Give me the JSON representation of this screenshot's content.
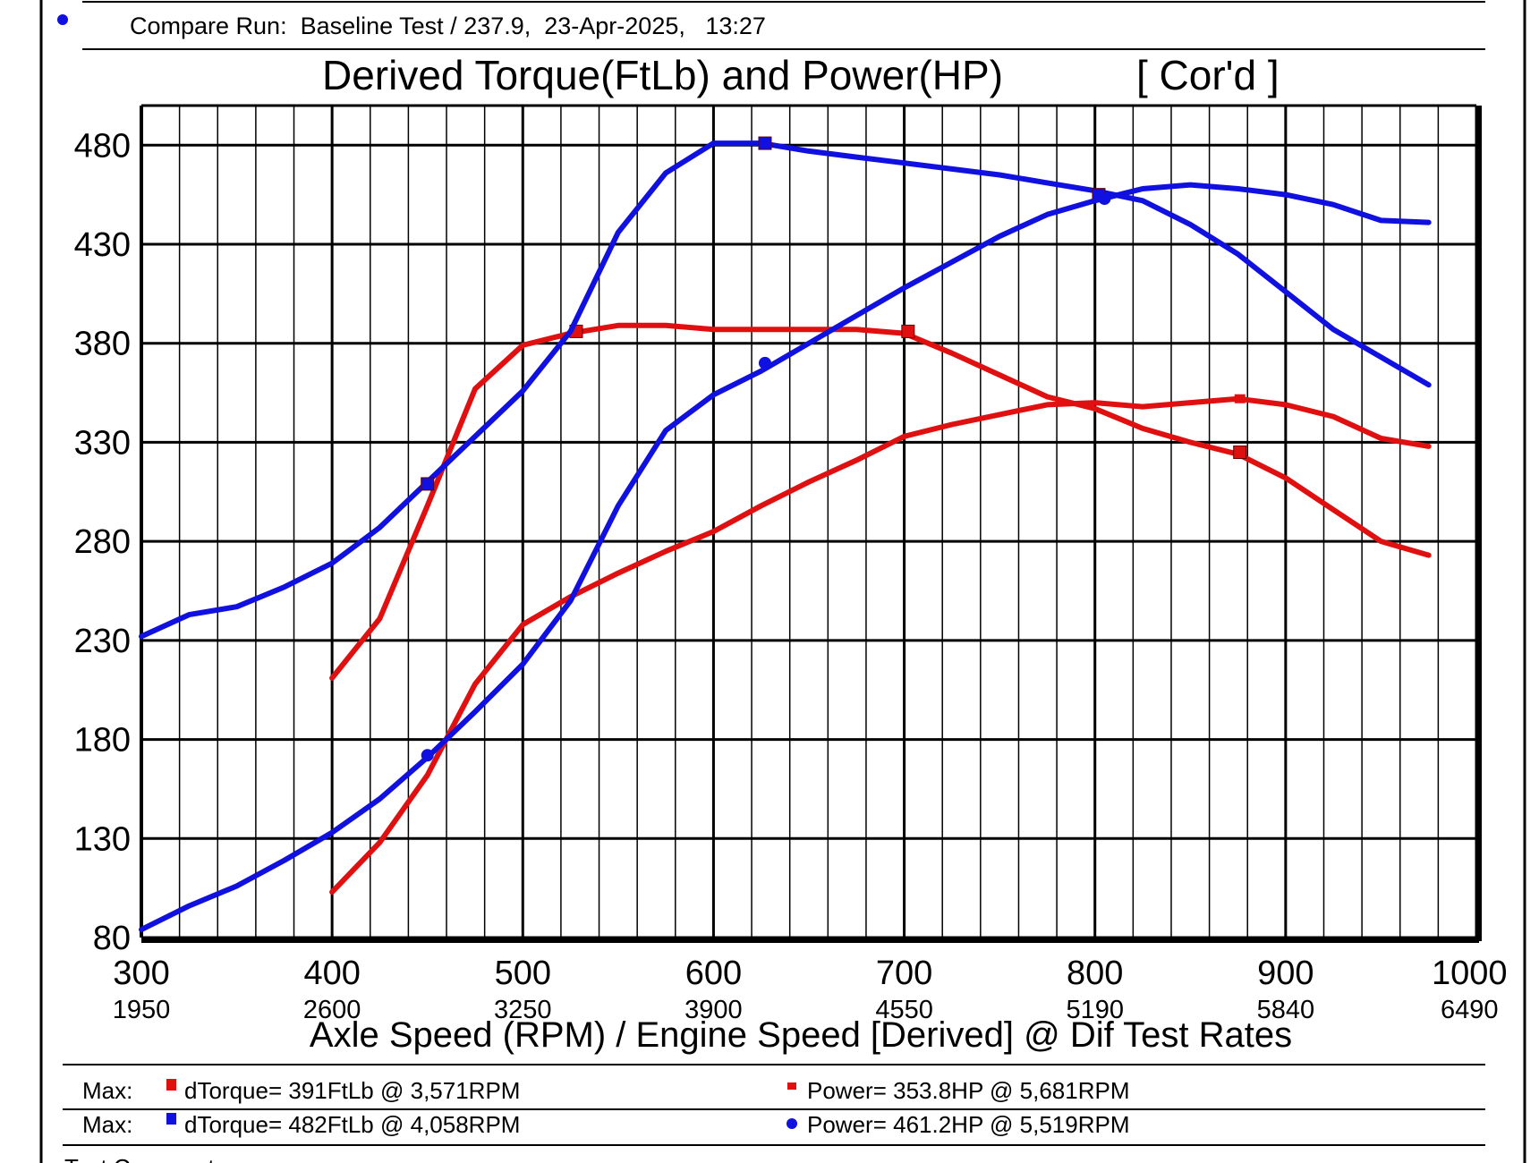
{
  "header": {
    "compare_run": "Compare Run:  Baseline Test / 237.9,  23-Apr-2025,   13:27"
  },
  "chart_data": {
    "type": "line",
    "title": "Derived Torque(FtLb) and Power(HP)",
    "title_suffix": "[ Cor'd ]",
    "xlabel": "Axle Speed (RPM) / Engine Speed [Derived] @ Dif Test Rates",
    "ylabel": "",
    "xlim": [
      300,
      1000
    ],
    "ylim": [
      80,
      500
    ],
    "x_ticks": [
      300,
      400,
      500,
      600,
      700,
      800,
      900,
      1000
    ],
    "x_tick_labels": [
      "300",
      "400",
      "500",
      "600",
      "700",
      "800",
      "900",
      "1000"
    ],
    "x_secondary_tick_labels": [
      "1950",
      "2600",
      "3250",
      "3900",
      "4550",
      "5190",
      "5840",
      "6490"
    ],
    "y_ticks": [
      80,
      130,
      180,
      230,
      280,
      330,
      380,
      430,
      480
    ],
    "y_tick_labels": [
      "80",
      "130",
      "180",
      "230",
      "280",
      "330",
      "380",
      "430",
      "480"
    ],
    "grid": true,
    "series": [
      {
        "name": "dTorque (Compare Run)",
        "color": "#e01010",
        "marker": "square",
        "points": [
          [
            400,
            211
          ],
          [
            425,
            241
          ],
          [
            450,
            298
          ],
          [
            475,
            357
          ],
          [
            500,
            379
          ],
          [
            525,
            385
          ],
          [
            550,
            389
          ],
          [
            575,
            389
          ],
          [
            600,
            387
          ],
          [
            625,
            387
          ],
          [
            650,
            387
          ],
          [
            675,
            387
          ],
          [
            700,
            385
          ],
          [
            725,
            375
          ],
          [
            750,
            364
          ],
          [
            775,
            353
          ],
          [
            800,
            347
          ],
          [
            825,
            337
          ],
          [
            850,
            330
          ],
          [
            875,
            324
          ],
          [
            900,
            312
          ],
          [
            925,
            296
          ],
          [
            950,
            280
          ],
          [
            975,
            273
          ]
        ],
        "markers": [
          [
            528,
            386
          ],
          [
            702,
            386
          ],
          [
            876,
            325
          ]
        ]
      },
      {
        "name": "Power (Compare Run)",
        "color": "#e01010",
        "marker": "star",
        "points": [
          [
            400,
            103
          ],
          [
            425,
            128
          ],
          [
            450,
            162
          ],
          [
            475,
            208
          ],
          [
            500,
            238
          ],
          [
            525,
            252
          ],
          [
            550,
            264
          ],
          [
            575,
            275
          ],
          [
            600,
            285
          ],
          [
            625,
            298
          ],
          [
            650,
            310
          ],
          [
            675,
            321
          ],
          [
            700,
            333
          ],
          [
            725,
            339
          ],
          [
            750,
            344
          ],
          [
            775,
            349
          ],
          [
            800,
            350
          ],
          [
            825,
            348
          ],
          [
            850,
            350
          ],
          [
            875,
            352
          ],
          [
            900,
            349
          ],
          [
            925,
            343
          ],
          [
            950,
            332
          ],
          [
            975,
            328
          ]
        ],
        "markers": [
          [
            876,
            352
          ]
        ]
      },
      {
        "name": "dTorque (Baseline)",
        "color": "#1010e0",
        "marker": "square",
        "points": [
          [
            300,
            232
          ],
          [
            325,
            243
          ],
          [
            350,
            247
          ],
          [
            375,
            257
          ],
          [
            400,
            269
          ],
          [
            425,
            287
          ],
          [
            450,
            310
          ],
          [
            475,
            333
          ],
          [
            500,
            356
          ],
          [
            525,
            386
          ],
          [
            550,
            436
          ],
          [
            575,
            466
          ],
          [
            600,
            481
          ],
          [
            625,
            481
          ],
          [
            650,
            477
          ],
          [
            675,
            474
          ],
          [
            700,
            471
          ],
          [
            725,
            468
          ],
          [
            750,
            465
          ],
          [
            775,
            461
          ],
          [
            800,
            457
          ],
          [
            825,
            452
          ],
          [
            850,
            440
          ],
          [
            875,
            425
          ],
          [
            900,
            406
          ],
          [
            925,
            387
          ],
          [
            950,
            373
          ],
          [
            975,
            359
          ]
        ],
        "markers": [
          [
            450,
            309
          ],
          [
            627,
            481
          ],
          [
            802,
            455
          ]
        ]
      },
      {
        "name": "Power (Baseline)",
        "color": "#1010e0",
        "marker": "circle",
        "points": [
          [
            300,
            84
          ],
          [
            325,
            96
          ],
          [
            350,
            106
          ],
          [
            375,
            119
          ],
          [
            400,
            133
          ],
          [
            425,
            150
          ],
          [
            450,
            171
          ],
          [
            475,
            194
          ],
          [
            500,
            218
          ],
          [
            525,
            250
          ],
          [
            550,
            298
          ],
          [
            575,
            336
          ],
          [
            600,
            354
          ],
          [
            625,
            366
          ],
          [
            650,
            380
          ],
          [
            675,
            394
          ],
          [
            700,
            408
          ],
          [
            725,
            421
          ],
          [
            750,
            434
          ],
          [
            775,
            445
          ],
          [
            800,
            452
          ],
          [
            825,
            458
          ],
          [
            850,
            460
          ],
          [
            875,
            458
          ],
          [
            900,
            455
          ],
          [
            925,
            450
          ],
          [
            950,
            442
          ],
          [
            975,
            441
          ]
        ],
        "markers": [
          [
            450,
            172
          ],
          [
            627,
            370
          ],
          [
            805,
            453
          ]
        ]
      }
    ]
  },
  "summary": {
    "rows": [
      {
        "max_label": "Max:",
        "torque_color": "#e01010",
        "torque_text": "dTorque= 391FtLb @ 3,571RPM",
        "power_color": "#e01010",
        "power_text": "Power= 353.8HP @ 5,681RPM"
      },
      {
        "max_label": "Max:",
        "torque_color": "#1010e0",
        "torque_text": "dTorque= 482FtLb @ 4,058RPM",
        "power_color": "#1010e0",
        "power_text": "Power= 461.2HP @ 5,519RPM"
      }
    ]
  },
  "footer": {
    "comments_label": "Test Comments:"
  }
}
